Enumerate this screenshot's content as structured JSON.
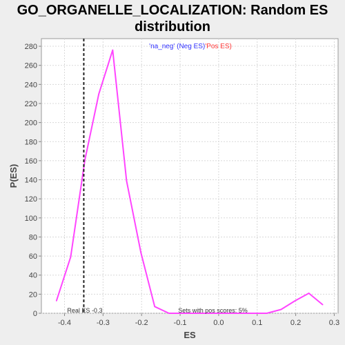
{
  "chart_data": {
    "type": "line",
    "title_line1": "GO_ORGANELLE_LOCALIZATION: Random ES",
    "title_line2": "distribution",
    "xlabel": "ES",
    "ylabel": "P(ES)",
    "xlim": [
      -0.46,
      0.31
    ],
    "ylim": [
      0,
      288
    ],
    "x_ticks": [
      -0.4,
      -0.3,
      -0.2,
      -0.1,
      0.0,
      0.1,
      0.2,
      0.3
    ],
    "x_tick_labels": [
      "-0.4",
      "-0.3",
      "-0.2",
      "-0.1",
      "0.0",
      "0.1",
      "0.2",
      "0.3"
    ],
    "y_ticks": [
      0,
      20,
      40,
      60,
      80,
      100,
      120,
      140,
      160,
      180,
      200,
      220,
      240,
      260,
      280
    ],
    "y_tick_labels": [
      "0",
      "20",
      "40",
      "60",
      "80",
      "100",
      "120",
      "140",
      "160",
      "180",
      "200",
      "220",
      "240",
      "260",
      "280"
    ],
    "grid": true,
    "series": [
      {
        "color": "#ff44ff",
        "x": [
          -0.421,
          -0.384,
          -0.347,
          -0.311,
          -0.275,
          -0.239,
          -0.202,
          -0.166,
          -0.129,
          -0.093,
          -0.057,
          -0.02,
          0.016,
          0.052,
          0.089,
          0.125,
          0.162,
          0.198,
          0.234,
          0.27
        ],
        "y": [
          13,
          59,
          161,
          230,
          276,
          139,
          64,
          7,
          0,
          0,
          0,
          0,
          0,
          0,
          0,
          0,
          4,
          13,
          21,
          9
        ]
      }
    ],
    "real_es": -0.35,
    "real_es_label": "Real ES -0.3",
    "sets_label": "Sets with pos scores: 5%",
    "legend": {
      "part1": "'na_neg' (Neg ES)",
      "part1_color": "#3333ff",
      "part2": "'Pos ES)",
      "part2_color": "#ff3333",
      "placement": "top-center"
    }
  }
}
